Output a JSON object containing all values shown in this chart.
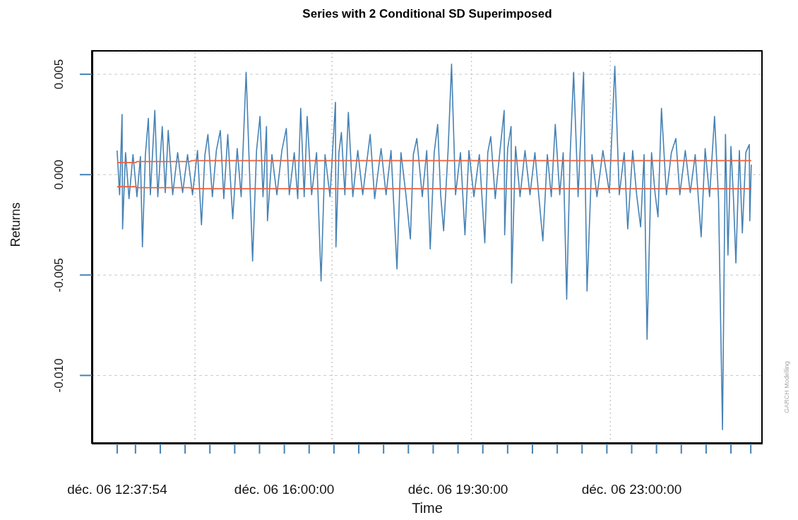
{
  "chart_data": {
    "type": "line",
    "title": "Series with 2 Conditional SD Superimposed",
    "xlabel": "Time",
    "ylabel": "Returns",
    "annotations": [
      "GARCH Modelling"
    ],
    "xlim": [
      "--12-06T12:07:12",
      "--12-07T01:38:24"
    ],
    "ylim": [
      -0.0134,
      0.0062
    ],
    "xticks": [
      {
        "value": "--12-06T12:37:54",
        "label": "déc. 06 12:37:54"
      },
      {
        "value": "--12-06T13:00",
        "label": null
      },
      {
        "value": "--12-06T13:30",
        "label": null
      },
      {
        "value": "--12-06T14:00",
        "label": null
      },
      {
        "value": "--12-06T14:30",
        "label": null
      },
      {
        "value": "--12-06T15:00",
        "label": null
      },
      {
        "value": "--12-06T15:30",
        "label": null
      },
      {
        "value": "--12-06T16:00",
        "label": "déc. 06 16:00:00"
      },
      {
        "value": "--12-06T16:30",
        "label": null
      },
      {
        "value": "--12-06T17:00",
        "label": null
      },
      {
        "value": "--12-06T17:30",
        "label": null
      },
      {
        "value": "--12-06T18:00",
        "label": null
      },
      {
        "value": "--12-06T18:30",
        "label": null
      },
      {
        "value": "--12-06T19:00",
        "label": null
      },
      {
        "value": "--12-06T19:30",
        "label": "déc. 06 19:30:00"
      },
      {
        "value": "--12-06T20:00",
        "label": null
      },
      {
        "value": "--12-06T20:30",
        "label": null
      },
      {
        "value": "--12-06T21:00",
        "label": null
      },
      {
        "value": "--12-06T21:30",
        "label": null
      },
      {
        "value": "--12-06T22:00",
        "label": null
      },
      {
        "value": "--12-06T22:30",
        "label": null
      },
      {
        "value": "--12-06T23:00",
        "label": "déc. 06 23:00:00"
      },
      {
        "value": "--12-06T23:30",
        "label": null
      },
      {
        "value": "--12-07T00:00",
        "label": null
      },
      {
        "value": "--12-07T00:30",
        "label": null
      },
      {
        "value": "--12-07T01:00",
        "label": null
      },
      {
        "value": "--12-07T01:24",
        "label": null
      }
    ],
    "yticks": [
      {
        "value": -0.01,
        "label": "-0.010"
      },
      {
        "value": -0.005,
        "label": "-0.005"
      },
      {
        "value": 0,
        "label": "0.000"
      },
      {
        "value": 0.005,
        "label": "0.005"
      }
    ],
    "grid": "y",
    "ref_lines": [
      {
        "axis": "x",
        "value": "--12-06T14:12",
        "color": "#c8c8c8",
        "line_style": "dotted"
      },
      {
        "axis": "x",
        "value": "--12-06T16:57:36",
        "color": "#c8c8c8",
        "line_style": "dotted"
      },
      {
        "axis": "x",
        "value": "--12-06T19:46:12",
        "color": "#c8c8c8",
        "line_style": "dotted"
      },
      {
        "axis": "x",
        "value": "--12-06T22:34:12",
        "color": "#c8c8c8",
        "line_style": "dotted"
      }
    ],
    "series": [
      {
        "color": "#4682b4",
        "x": [
          "--12-06T12:37:48",
          "--12-06T12:40:48",
          "--12-06T12:43:48",
          "--12-06T12:44:24",
          "--12-06T12:48:00",
          "--12-06T12:52:12",
          "--12-06T12:57:00",
          "--12-06T13:01:48",
          "--12-06T13:06:00",
          "--12-06T13:08:24",
          "--12-06T13:12:00",
          "--12-06T13:15:36",
          "--12-06T13:18:00",
          "--12-06T13:23:24",
          "--12-06T13:27:00",
          "--12-06T13:32:24",
          "--12-06T13:36:00",
          "--12-06T13:39:36",
          "--12-06T13:45:00",
          "--12-06T13:51:00",
          "--12-06T13:57:00",
          "--12-06T14:03:00",
          "--12-06T14:09:00",
          "--12-06T14:15:00",
          "--12-06T14:19:48",
          "--12-06T14:24:00",
          "--12-06T14:27:36",
          "--12-06T14:33:00",
          "--12-06T14:37:48",
          "--12-06T14:42:36",
          "--12-06T14:46:48",
          "--12-06T14:51:36",
          "--12-06T14:57:36",
          "--12-06T15:03:00",
          "--12-06T15:07:48",
          "--12-06T15:13:48",
          "--12-06T15:21:36",
          "--12-06T15:26:24",
          "--12-06T15:30:36",
          "--12-06T15:34:12",
          "--12-06T15:38:24",
          "--12-06T15:39:36",
          "--12-06T15:45:00",
          "--12-06T15:51:00",
          "--12-06T15:57:00",
          "--12-06T16:02:24",
          "--12-06T16:06:00",
          "--12-06T16:12:00",
          "--12-06T16:16:12",
          "--12-06T16:19:48",
          "--12-06T16:24:00",
          "--12-06T16:27:36",
          "--12-06T16:33:00",
          "--12-06T16:39:00",
          "--12-06T16:44:24",
          "--12-06T16:49:12",
          "--12-06T16:55:12",
          "--12-06T17:01:48",
          "--12-06T17:02:24",
          "--12-06T17:06:00",
          "--12-06T17:09:00",
          "--12-06T17:13:12",
          "--12-06T17:17:24",
          "--12-06T17:22:48",
          "--12-06T17:28:48",
          "--12-06T17:34:48",
          "--12-06T17:43:48",
          "--12-06T17:49:12",
          "--12-06T17:57:00",
          "--12-06T18:03:00",
          "--12-06T18:09:00",
          "--12-06T18:16:12",
          "--12-06T18:21:00",
          "--12-06T18:27:00",
          "--12-06T18:32:24",
          "--12-06T18:36:00",
          "--12-06T18:40:12",
          "--12-06T18:46:48",
          "--12-06T18:52:12",
          "--12-06T18:56:24",
          "--12-06T19:01:12",
          "--12-06T19:05:24",
          "--12-06T19:09:00",
          "--12-06T19:12:36",
          "--12-06T19:18:00",
          "--12-06T19:22:12",
          "--12-06T19:27:00",
          "--12-06T19:33:00",
          "--12-06T19:38:24",
          "--12-06T19:43:12",
          "--12-06T19:49:12",
          "--12-06T19:55:48",
          "--12-06T20:02:24",
          "--12-06T20:06:00",
          "--12-06T20:09:36",
          "--12-06T20:15:00",
          "--12-06T20:21:00",
          "--12-06T20:25:48",
          "--12-06T20:26:24",
          "--12-06T20:30:00",
          "--12-06T20:34:12",
          "--12-06T20:34:48",
          "--12-06T20:39:36",
          "--12-06T20:45:00",
          "--12-06T20:51:00",
          "--12-06T20:57:00",
          "--12-06T21:03:00",
          "--12-06T21:12:36",
          "--12-06T21:18:00",
          "--12-06T21:22:48",
          "--12-06T21:27:36",
          "--12-06T21:33:00",
          "--12-06T21:37:12",
          "--12-06T21:41:24",
          "--12-06T21:45:36",
          "--12-06T21:49:48",
          "--12-06T21:55:12",
          "--12-06T22:01:48",
          "--12-06T22:06:00",
          "--12-06T22:12:00",
          "--12-06T22:18:00",
          "--12-06T22:25:12",
          "--12-06T22:33:00",
          "--12-06T22:39:36",
          "--12-06T22:45:00",
          "--12-06T22:51:00",
          "--12-06T22:55:12",
          "--12-06T23:01:12",
          "--12-06T23:06:00",
          "--12-06T23:10:48",
          "--12-06T23:15:00",
          "--12-06T23:18:36",
          "--12-06T23:24:00",
          "--12-06T23:28:12",
          "--12-06T23:31:48",
          "--12-06T23:36:00",
          "--12-06T23:42:00",
          "--12-06T23:48:00",
          "--12-06T23:53:24",
          "--12-06T23:58:12",
          "--12-07T00:04:48",
          "--12-07T00:10:48",
          "--12-07T00:16:48",
          "--12-07T00:24:00",
          "--12-07T00:28:48",
          "--12-07T00:34:12",
          "--12-07T00:40:12",
          "--12-07T00:45:00",
          "--12-07T00:49:48",
          "--12-07T00:53:24",
          "--12-07T00:56:24",
          "--12-07T01:00:00",
          "--12-07T01:03:00",
          "--12-07T01:06:00",
          "--12-07T01:10:12",
          "--12-07T01:13:48",
          "--12-07T01:18:00",
          "--12-07T01:22:12",
          "--12-07T01:22:48",
          "--12-07T01:24:36"
        ],
        "values": [
          0.0012,
          -0.001,
          0.003,
          -0.0027,
          0.0011,
          -0.0012,
          0.001,
          -0.0011,
          0.0009,
          -0.0036,
          0.001,
          0.0028,
          -0.001,
          0.0032,
          -0.0011,
          0.0024,
          -0.0009,
          0.0022,
          -0.001,
          0.0011,
          -0.0009,
          0.001,
          -0.001,
          0.0012,
          -0.0025,
          0.001,
          0.002,
          -0.0011,
          0.0012,
          0.0022,
          -0.0012,
          0.002,
          -0.0022,
          0.0013,
          -0.0011,
          0.0051,
          -0.0043,
          0.0012,
          0.0029,
          -0.0011,
          0.0024,
          -0.0023,
          0.001,
          -0.001,
          0.0012,
          0.0023,
          -0.001,
          0.0011,
          -0.0012,
          0.0033,
          -0.0011,
          0.0029,
          -0.001,
          0.0011,
          -0.0053,
          0.001,
          -0.0011,
          0.0036,
          -0.0036,
          0.0011,
          0.0021,
          -0.001,
          0.0031,
          -0.0011,
          0.0012,
          -0.001,
          0.002,
          -0.0012,
          0.0013,
          -0.001,
          0.0012,
          -0.0047,
          0.0011,
          -0.001,
          -0.0032,
          0.001,
          0.0018,
          -0.0011,
          0.0012,
          -0.0037,
          0.0011,
          0.0025,
          -0.001,
          -0.0028,
          0.0012,
          0.0055,
          -0.001,
          0.0011,
          -0.003,
          0.0012,
          -0.0011,
          0.001,
          -0.0034,
          0.0011,
          0.0019,
          -0.0012,
          0.0013,
          0.0032,
          -0.003,
          0.0013,
          0.0024,
          -0.0054,
          0.0014,
          -0.0011,
          0.0012,
          -0.001,
          0.0011,
          -0.0033,
          0.001,
          -0.0011,
          0.0025,
          -0.001,
          0.0011,
          -0.0062,
          0.001,
          0.0051,
          -0.0011,
          0.0051,
          -0.0058,
          0.001,
          -0.0011,
          0.0012,
          -0.0009,
          0.0054,
          -0.001,
          0.0011,
          -0.0027,
          0.0012,
          -0.001,
          -0.0026,
          0.001,
          -0.0082,
          0.0011,
          -0.0009,
          -0.0021,
          0.0033,
          -0.001,
          0.0011,
          0.0018,
          -0.001,
          0.0012,
          -0.0009,
          0.001,
          -0.0031,
          0.0013,
          -0.0011,
          0.0029,
          -0.0012,
          -0.0127,
          0.002,
          -0.004,
          0.0014,
          -0.0011,
          -0.0044,
          0.0012,
          -0.0029,
          0.0011,
          0.0015,
          -0.0023,
          0.0005
        ]
      },
      {
        "color": "#f0603c",
        "x": [
          "--12-06T12:37:48",
          "--12-06T13:00",
          "--12-06T13:01:48",
          "--12-06T14:06",
          "--12-06T14:07:48",
          "--12-07T01:24:36"
        ],
        "values": [
          0.0006,
          0.0006,
          0.00065,
          0.00065,
          0.0007,
          0.0007
        ]
      },
      {
        "color": "#f0603c",
        "x": [
          "--12-06T12:37:48",
          "--12-06T13:00",
          "--12-06T13:01:48",
          "--12-06T14:06",
          "--12-06T14:07:48",
          "--12-07T01:24:36"
        ],
        "values": [
          -0.0006,
          -0.0006,
          -0.00065,
          -0.00065,
          -0.0007,
          -0.0007
        ]
      }
    ]
  }
}
